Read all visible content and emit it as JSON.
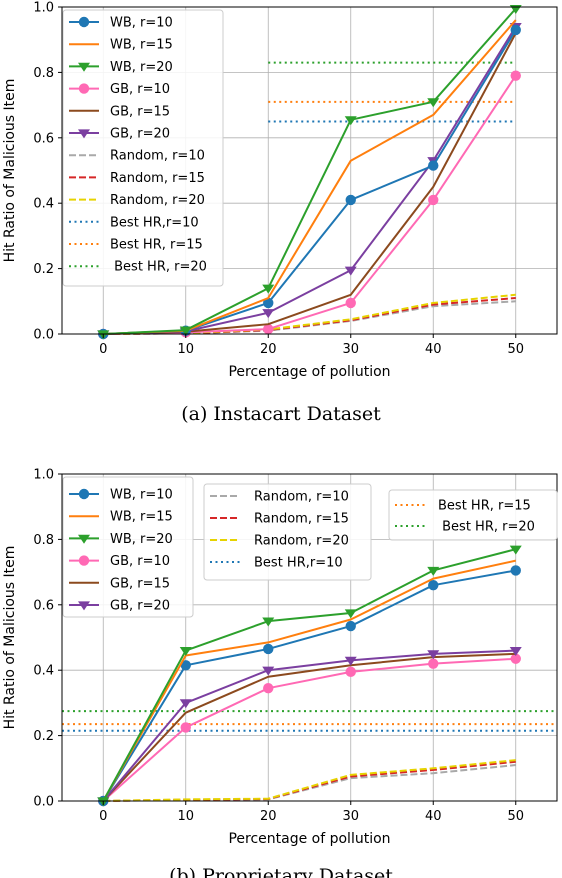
{
  "chart_data": [
    {
      "type": "line",
      "caption": "(a)  Instacart Dataset",
      "xlabel": "Percentage of pollution",
      "ylabel": "Hit Ratio of Malicious Item",
      "xlim": [
        -5,
        55
      ],
      "ylim": [
        0,
        1.0
      ],
      "x_ticks": [
        "0",
        "10",
        "20",
        "30",
        "40",
        "50"
      ],
      "y_ticks": [
        "0.0",
        "0.2",
        "0.4",
        "0.6",
        "0.8",
        "1.0"
      ],
      "grid": true,
      "legend_position": "upper-left",
      "x": [
        0,
        10,
        20,
        30,
        40,
        50
      ],
      "series": [
        {
          "name": "WB, r=10",
          "values": [
            0,
            0.01,
            0.095,
            0.41,
            0.515,
            0.93
          ],
          "color": "#1f77b4",
          "marker": "circle",
          "dash": "solid"
        },
        {
          "name": "WB, r=15",
          "values": [
            0,
            0.01,
            0.11,
            0.53,
            0.67,
            0.96
          ],
          "color": "#ff7f0e",
          "marker": "none",
          "dash": "solid"
        },
        {
          "name": "WB, r=20",
          "values": [
            0,
            0.012,
            0.14,
            0.655,
            0.71,
            0.995
          ],
          "color": "#2ca02c",
          "marker": "triangle-down",
          "dash": "solid"
        },
        {
          "name": "GB, r=10",
          "values": [
            0,
            0.005,
            0.015,
            0.095,
            0.41,
            0.79
          ],
          "color": "#ff69b4",
          "marker": "circle",
          "dash": "solid"
        },
        {
          "name": "GB, r=15",
          "values": [
            0,
            0.007,
            0.03,
            0.12,
            0.45,
            0.92
          ],
          "color": "#8c4a1e",
          "marker": "none",
          "dash": "solid"
        },
        {
          "name": "GB, r=20",
          "values": [
            0,
            0.008,
            0.065,
            0.195,
            0.53,
            0.94
          ],
          "color": "#7b3fa0",
          "marker": "triangle-down",
          "dash": "solid"
        },
        {
          "name": "Random, r=10",
          "values": [
            0,
            0.002,
            0.01,
            0.04,
            0.085,
            0.1
          ],
          "color": "#a9a9a9",
          "marker": "none",
          "dash": "dashed"
        },
        {
          "name": "Random, r=15",
          "values": [
            0,
            0.002,
            0.012,
            0.042,
            0.09,
            0.11
          ],
          "color": "#d62728",
          "marker": "none",
          "dash": "dashed"
        },
        {
          "name": "Random, r=20",
          "values": [
            0,
            0.003,
            0.014,
            0.045,
            0.095,
            0.12
          ],
          "color": "#e6d300",
          "marker": "none",
          "dash": "dashed"
        }
      ],
      "reference_lines": [
        {
          "name": "Best HR,r=10",
          "y": 0.65,
          "x_from": 20,
          "x_to": 50,
          "color": "#1f77b4"
        },
        {
          "name": "Best HR, r=15",
          "y": 0.71,
          "x_from": 20,
          "x_to": 50,
          "color": "#ff7f0e"
        },
        {
          "name": " Best HR, r=20",
          "y": 0.83,
          "x_from": 20,
          "x_to": 50,
          "color": "#2ca02c"
        }
      ]
    },
    {
      "type": "line",
      "caption": "(b)  Proprietary Dataset",
      "xlabel": "Percentage of pollution",
      "ylabel": "Hit Ratio of Malicious Item",
      "xlim": [
        -5,
        55
      ],
      "ylim": [
        0,
        1.0
      ],
      "x_ticks": [
        "0",
        "10",
        "20",
        "30",
        "40",
        "50"
      ],
      "y_ticks": [
        "0.0",
        "0.2",
        "0.4",
        "0.6",
        "0.8",
        "1.0"
      ],
      "grid": true,
      "legend_position": "top, three columns",
      "x": [
        0,
        10,
        20,
        30,
        40,
        50
      ],
      "series": [
        {
          "name": "WB, r=10",
          "values": [
            0,
            0.415,
            0.465,
            0.535,
            0.66,
            0.705
          ],
          "color": "#1f77b4",
          "marker": "circle",
          "dash": "solid"
        },
        {
          "name": "WB, r=15",
          "values": [
            0,
            0.445,
            0.485,
            0.555,
            0.68,
            0.735
          ],
          "color": "#ff7f0e",
          "marker": "none",
          "dash": "solid"
        },
        {
          "name": "WB, r=20",
          "values": [
            0,
            0.46,
            0.55,
            0.575,
            0.705,
            0.77
          ],
          "color": "#2ca02c",
          "marker": "triangle-down",
          "dash": "solid"
        },
        {
          "name": "GB, r=10",
          "values": [
            0,
            0.225,
            0.345,
            0.395,
            0.42,
            0.435
          ],
          "color": "#ff69b4",
          "marker": "circle",
          "dash": "solid"
        },
        {
          "name": "GB, r=15",
          "values": [
            0,
            0.27,
            0.38,
            0.415,
            0.44,
            0.45
          ],
          "color": "#8c4a1e",
          "marker": "none",
          "dash": "solid"
        },
        {
          "name": "GB, r=20",
          "values": [
            0,
            0.3,
            0.4,
            0.43,
            0.45,
            0.46
          ],
          "color": "#7b3fa0",
          "marker": "triangle-down",
          "dash": "solid"
        },
        {
          "name": "Random, r=10",
          "values": [
            0,
            0.003,
            0.005,
            0.07,
            0.085,
            0.11
          ],
          "color": "#a9a9a9",
          "marker": "none",
          "dash": "dashed"
        },
        {
          "name": "Random, r=15",
          "values": [
            0,
            0.004,
            0.006,
            0.075,
            0.095,
            0.12
          ],
          "color": "#d62728",
          "marker": "none",
          "dash": "dashed"
        },
        {
          "name": "Random, r=20",
          "values": [
            0,
            0.005,
            0.007,
            0.08,
            0.1,
            0.125
          ],
          "color": "#e6d300",
          "marker": "none",
          "dash": "dashed"
        }
      ],
      "reference_lines": [
        {
          "name": "Best HR,r=10",
          "y": 0.215,
          "x_from": -5,
          "x_to": 55,
          "color": "#1f77b4"
        },
        {
          "name": "Best HR, r=15",
          "y": 0.235,
          "x_from": -5,
          "x_to": 55,
          "color": "#ff7f0e"
        },
        {
          "name": " Best HR, r=20",
          "y": 0.275,
          "x_from": -5,
          "x_to": 55,
          "color": "#2ca02c"
        }
      ]
    }
  ]
}
